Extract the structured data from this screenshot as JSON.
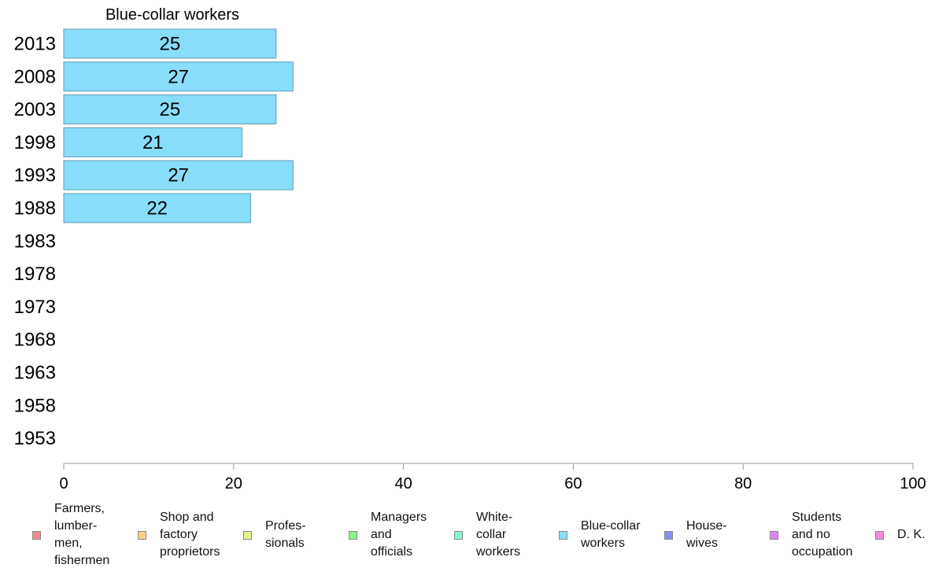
{
  "chart_data": {
    "type": "bar",
    "orientation": "horizontal",
    "title": "Blue-collar workers",
    "categories": [
      "2013",
      "2008",
      "2003",
      "1998",
      "1993",
      "1988",
      "1983",
      "1978",
      "1973",
      "1968",
      "1963",
      "1958",
      "1953"
    ],
    "series": [
      {
        "name": "Blue-collar workers",
        "values": [
          25,
          27,
          25,
          21,
          27,
          22,
          null,
          null,
          null,
          null,
          null,
          null,
          null
        ]
      }
    ],
    "data_labels": [
      "25",
      "27",
      "25",
      "21",
      "27",
      "22",
      "",
      "",
      "",
      "",
      "",
      "",
      ""
    ],
    "xlim": [
      0,
      100
    ],
    "xticks": [
      0,
      20,
      40,
      60,
      80,
      100
    ],
    "grid": false,
    "legend_position": "bottom",
    "bar_color": "#88ddfb",
    "bar_edge_color": "#5f9cb5"
  },
  "legend": [
    {
      "label": "Farmers,\nlumber-\nmen,\nfishermen",
      "color": "#f28a88"
    },
    {
      "label": "Shop and\nfactory\nproprietors",
      "color": "#f7d482"
    },
    {
      "label": "Profes-\nsionals",
      "color": "#e3f78a"
    },
    {
      "label": "Managers\nand\nofficials",
      "color": "#8cf58a"
    },
    {
      "label": "White-\ncollar\nworkers",
      "color": "#85f5d8"
    },
    {
      "label": "Blue-collar\nworkers",
      "color": "#88ddfb"
    },
    {
      "label": "House-\nwives",
      "color": "#8a8df5"
    },
    {
      "label": "Students\nand no\noccupation",
      "color": "#dc86f5"
    },
    {
      "label": "D. K.",
      "color": "#f58ad8"
    }
  ]
}
